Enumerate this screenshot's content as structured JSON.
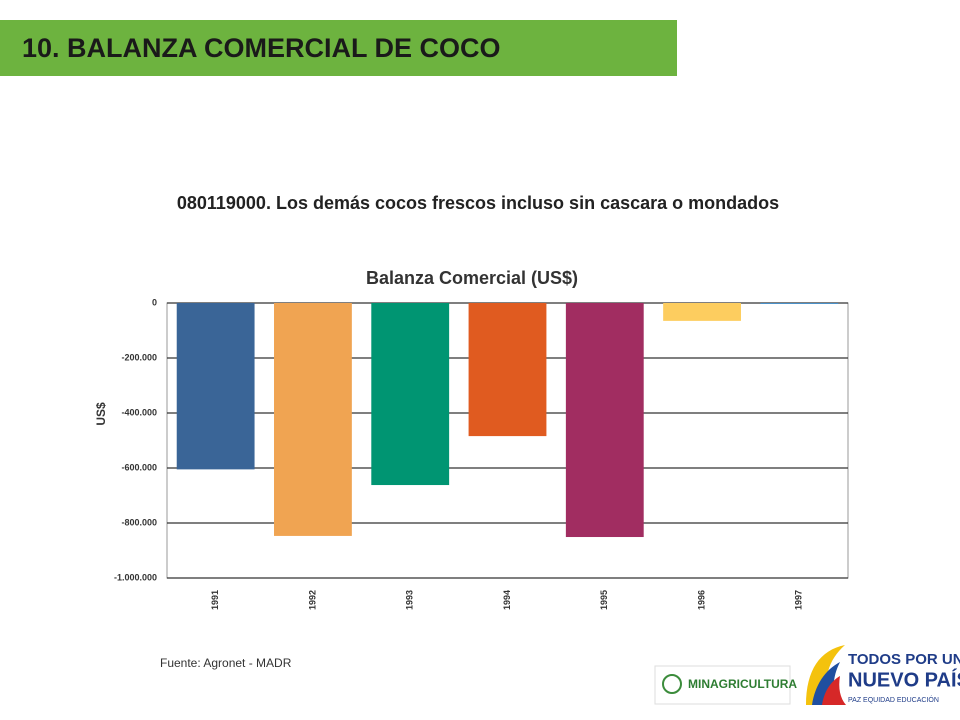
{
  "header": {
    "title": "10. BALANZA COMERCIAL DE COCO"
  },
  "chart_data": {
    "type": "bar",
    "subtitle": "080119000. Los demás cocos frescos incluso sin cascara o mondados",
    "title": "Balanza Comercial (US$)",
    "ylabel": "US$",
    "categories": [
      "1991",
      "1992",
      "1993",
      "1994",
      "1995",
      "1996",
      "1997"
    ],
    "values": [
      -605000,
      -847000,
      -662000,
      -484000,
      -851000,
      -65000,
      -3000
    ],
    "colors": [
      "#3a6597",
      "#f0a452",
      "#009572",
      "#e05b20",
      "#a12d61",
      "#fdcd5f",
      "#4a90c8"
    ],
    "ylim": [
      -1000000,
      0
    ],
    "yticks": [
      {
        "value": -1000000,
        "label": "-1.000.000"
      },
      {
        "value": -800000,
        "label": "-800.000"
      },
      {
        "value": -600000,
        "label": "-600.000"
      },
      {
        "value": -400000,
        "label": "-400.000"
      },
      {
        "value": -200000,
        "label": "-200.000"
      },
      0
    ],
    "grid": true
  },
  "source": "Fuente: Agronet - MADR",
  "logos": {
    "ministry": "MINAGRICULTURA",
    "line1": "TODOS POR UN",
    "line2": "NUEVO PAÍS",
    "line3": "PAZ  EQUIDAD  EDUCACIÓN"
  }
}
